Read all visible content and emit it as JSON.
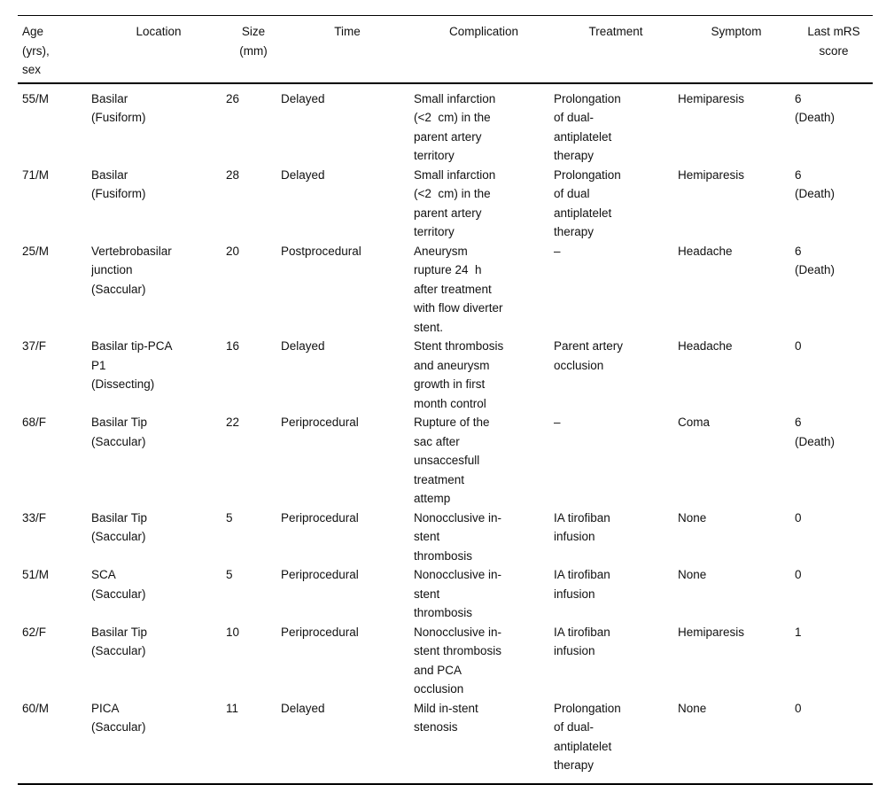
{
  "page": {
    "background": "#ffffff",
    "text_color": "#111111",
    "rule_color": "#000000"
  },
  "table": {
    "description": "Clinical table of aneurysm treatment complications",
    "columns": [
      {
        "id": "age_sex",
        "label": "Age\n(yrs),\nsex"
      },
      {
        "id": "location",
        "label": "Location"
      },
      {
        "id": "size",
        "label": "Size\n(mm)"
      },
      {
        "id": "time",
        "label": "Time"
      },
      {
        "id": "complication",
        "label": "Complication"
      },
      {
        "id": "treatment",
        "label": "Treatment"
      },
      {
        "id": "symptom",
        "label": "Symptom"
      },
      {
        "id": "mrs",
        "label": "Last mRS\nscore"
      }
    ],
    "rows": [
      {
        "cells": [
          "55/M",
          "Basilar\n(Fusiform)",
          "26",
          "Delayed",
          "Small infarction\n(<2  cm) in the\nparent artery\nterritory",
          "Prolongation\nof dual-\nantiplatelet\ntherapy",
          "Hemiparesis",
          "6\n(Death)"
        ]
      },
      {
        "cells": [
          "71/M",
          "Basilar\n(Fusiform)",
          "28",
          "Delayed",
          "Small infarction\n(<2  cm) in the\nparent artery\nterritory",
          "Prolongation\nof dual\nantiplatelet\ntherapy",
          "Hemiparesis",
          "6\n(Death)"
        ]
      },
      {
        "cells": [
          "25/M",
          "Vertebrobasilar\njunction\n(Saccular)",
          "20",
          "Postprocedural",
          "Aneurysm\nrupture 24  h\nafter treatment\nwith flow diverter\nstent.",
          "–",
          "Headache",
          "6\n(Death)"
        ]
      },
      {
        "cells": [
          "37/F",
          "Basilar tip-PCA\nP1\n(Dissecting)",
          "16",
          "Delayed",
          "Stent thrombosis\nand aneurysm\ngrowth in first\nmonth control",
          "Parent artery\nocclusion",
          "Headache",
          "0"
        ]
      },
      {
        "cells": [
          "68/F",
          "Basilar Tip\n(Saccular)",
          "22",
          "Periprocedural",
          "Rupture of the\nsac after\nunsaccesfull\ntreatment\nattemp",
          "–",
          "Coma",
          "6\n(Death)"
        ]
      },
      {
        "cells": [
          "33/F",
          "Basilar Tip\n(Saccular)",
          "5",
          "Periprocedural",
          "Nonocclusive in-\nstent\nthrombosis",
          "IA tirofiban\ninfusion",
          "None",
          "0"
        ]
      },
      {
        "cells": [
          "51/M",
          "SCA\n(Saccular)",
          "5",
          "Periprocedural",
          "Nonocclusive in-\nstent\nthrombosis",
          "IA tirofiban\ninfusion",
          "None",
          "0"
        ]
      },
      {
        "cells": [
          "62/F",
          "Basilar Tip\n(Saccular)",
          "10",
          "Periprocedural",
          "Nonocclusive in-\nstent thrombosis\nand PCA\nocclusion",
          "IA tirofiban\ninfusion",
          "Hemiparesis",
          "1"
        ]
      },
      {
        "cells": [
          "60/M",
          "PICA\n(Saccular)",
          "11",
          "Delayed",
          "Mild in-stent\nstenosis",
          "Prolongation\nof dual-\nantiplatelet\ntherapy",
          "None",
          "0"
        ]
      }
    ]
  }
}
